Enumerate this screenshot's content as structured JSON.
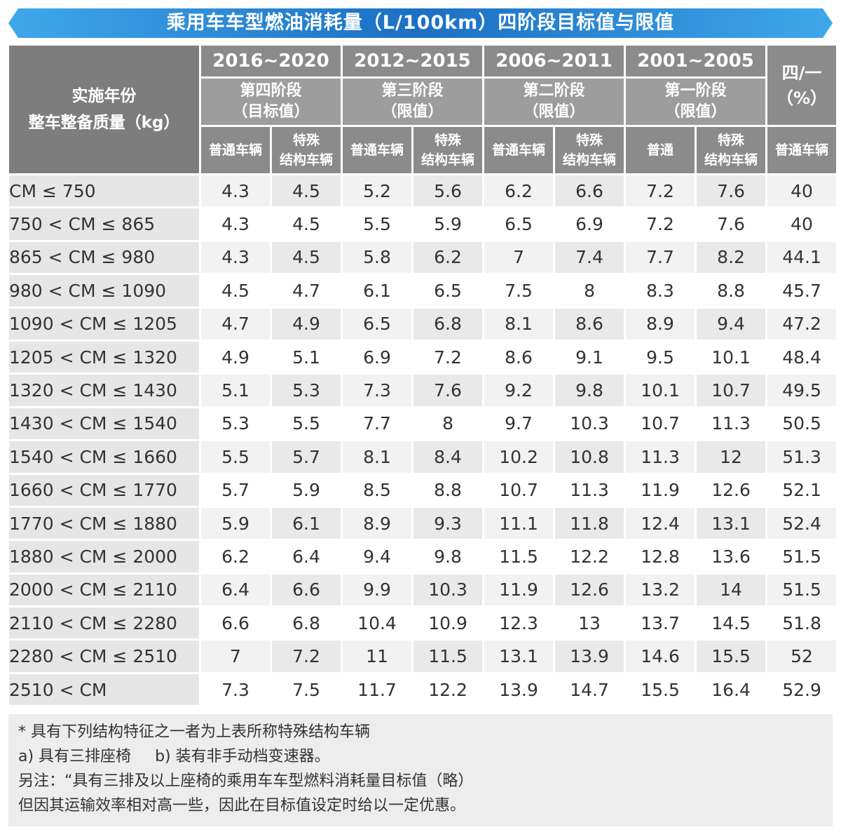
{
  "title": "乘用车车型燃油消耗量（L/100km）四阶段目标值与限值",
  "header": {
    "corner_line1": "实施年份",
    "corner_line2": "整车整备质量（kg）",
    "periods": [
      {
        "years": "2016~2020",
        "stage": "第四阶段",
        "kind": "（目标值）"
      },
      {
        "years": "2012~2015",
        "stage": "第三阶段",
        "kind": "（限值）"
      },
      {
        "years": "2006~2011",
        "stage": "第二阶段",
        "kind": "（限值）"
      },
      {
        "years": "2001~2005",
        "stage": "第一阶段",
        "kind": "（限值）"
      }
    ],
    "ratio_line1": "四/一",
    "ratio_line2": "（%）",
    "sub": [
      "普通车辆",
      "特殊结构车辆",
      "普通车辆",
      "特殊结构车辆",
      "普通车辆",
      "特殊结构车辆",
      "普通",
      "特殊结构车辆",
      "普通车辆"
    ],
    "sub_split": [
      [
        "普通车辆"
      ],
      [
        "特殊",
        "结构车辆"
      ],
      [
        "普通车辆"
      ],
      [
        "特殊",
        "结构车辆"
      ],
      [
        "普通车辆"
      ],
      [
        "特殊",
        "结构车辆"
      ],
      [
        "普通"
      ],
      [
        "特殊",
        "结构车辆"
      ],
      [
        "普通车辆"
      ]
    ]
  },
  "rows": [
    {
      "range": "CM ≤ 750",
      "values": [
        "4.3",
        "4.5",
        "5.2",
        "5.6",
        "6.2",
        "6.6",
        "7.2",
        "7.6",
        "40"
      ]
    },
    {
      "range": "750 < CM ≤ 865",
      "values": [
        "4.3",
        "4.5",
        "5.5",
        "5.9",
        "6.5",
        "6.9",
        "7.2",
        "7.6",
        "40"
      ]
    },
    {
      "range": "865 < CM ≤ 980",
      "values": [
        "4.3",
        "4.5",
        "5.8",
        "6.2",
        "7",
        "7.4",
        "7.7",
        "8.2",
        "44.1"
      ]
    },
    {
      "range": "980 < CM ≤ 1090",
      "values": [
        "4.5",
        "4.7",
        "6.1",
        "6.5",
        "7.5",
        "8",
        "8.3",
        "8.8",
        "45.7"
      ]
    },
    {
      "range": "1090 < CM ≤ 1205",
      "values": [
        "4.7",
        "4.9",
        "6.5",
        "6.8",
        "8.1",
        "8.6",
        "8.9",
        "9.4",
        "47.2"
      ]
    },
    {
      "range": "1205 < CM ≤ 1320",
      "values": [
        "4.9",
        "5.1",
        "6.9",
        "7.2",
        "8.6",
        "9.1",
        "9.5",
        "10.1",
        "48.4"
      ]
    },
    {
      "range": "1320 < CM ≤ 1430",
      "values": [
        "5.1",
        "5.3",
        "7.3",
        "7.6",
        "9.2",
        "9.8",
        "10.1",
        "10.7",
        "49.5"
      ]
    },
    {
      "range": "1430 < CM ≤ 1540",
      "values": [
        "5.3",
        "5.5",
        "7.7",
        "8",
        "9.7",
        "10.3",
        "10.7",
        "11.3",
        "50.5"
      ]
    },
    {
      "range": "1540 < CM ≤ 1660",
      "values": [
        "5.5",
        "5.7",
        "8.1",
        "8.4",
        "10.2",
        "10.8",
        "11.3",
        "12",
        "51.3"
      ]
    },
    {
      "range": "1660 < CM ≤ 1770",
      "values": [
        "5.7",
        "5.9",
        "8.5",
        "8.8",
        "10.7",
        "11.3",
        "11.9",
        "12.6",
        "52.1"
      ]
    },
    {
      "range": "1770 < CM ≤ 1880",
      "values": [
        "5.9",
        "6.1",
        "8.9",
        "9.3",
        "11.1",
        "11.8",
        "12.4",
        "13.1",
        "52.4"
      ]
    },
    {
      "range": "1880 < CM ≤ 2000",
      "values": [
        "6.2",
        "6.4",
        "9.4",
        "9.8",
        "11.5",
        "12.2",
        "12.8",
        "13.6",
        "51.5"
      ]
    },
    {
      "range": "2000 < CM ≤ 2110",
      "values": [
        "6.4",
        "6.6",
        "9.9",
        "10.3",
        "11.9",
        "12.6",
        "13.2",
        "14",
        "51.5"
      ]
    },
    {
      "range": "2110 < CM ≤ 2280",
      "values": [
        "6.6",
        "6.8",
        "10.4",
        "10.9",
        "12.3",
        "13",
        "13.7",
        "14.5",
        "51.8"
      ]
    },
    {
      "range": "2280 < CM ≤ 2510",
      "values": [
        "7",
        "7.2",
        "11",
        "11.5",
        "13.1",
        "13.9",
        "14.6",
        "15.5",
        "52"
      ]
    },
    {
      "range": "2510 < CM",
      "values": [
        "7.3",
        "7.5",
        "11.7",
        "12.2",
        "13.9",
        "14.7",
        "15.5",
        "16.4",
        "52.9"
      ]
    }
  ],
  "notes": {
    "line1": "* 具有下列结构特征之一者为上表所称特殊结构车辆",
    "line2a": "a) 具有三排座椅",
    "line2b": "b)  装有非手动档变速器。",
    "line3": "另注：“具有三排及以上座椅的乘用车车型燃料消耗量目标值（略）",
    "line4": "但因其运输效率相对高一些，因此在目标值设定时给以一定优惠。"
  },
  "colors": {
    "banner_dark": "#1b6fc4",
    "banner_light": "#3fa8ea",
    "header_gray": "#8b8b8b",
    "label_gray": "#e6e6e6"
  }
}
